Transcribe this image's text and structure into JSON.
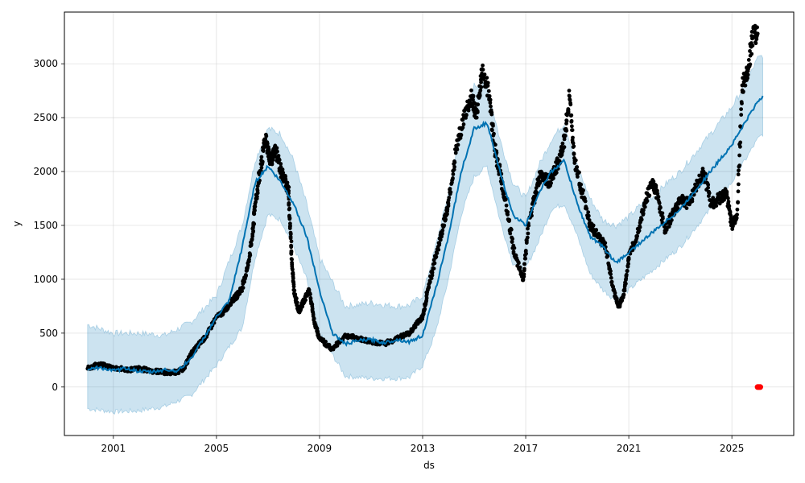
{
  "chart_data": {
    "type": "line",
    "title": "",
    "xlabel": "ds",
    "ylabel": "y",
    "x_tick_labels": [
      "2001",
      "2005",
      "2009",
      "2013",
      "2017",
      "2021",
      "2025"
    ],
    "x_tick_values": [
      2001,
      2005,
      2009,
      2013,
      2017,
      2021,
      2025
    ],
    "y_tick_labels": [
      "0",
      "500",
      "1000",
      "1500",
      "2000",
      "2500",
      "3000"
    ],
    "y_tick_values": [
      0,
      500,
      1000,
      1500,
      2000,
      2500,
      3000
    ],
    "xlim": [
      1999.1,
      2027.4
    ],
    "ylim": [
      -450,
      3480
    ],
    "grid": true,
    "colors": {
      "forecast_line": "#0072b2",
      "interval_fill": "#0072b2",
      "observed": "#000000",
      "highlight": "#ff0000"
    },
    "series": [
      {
        "type": "scatter",
        "x": [
          2000.0,
          2000.4,
          2001.0,
          2001.5,
          2002.0,
          2002.5,
          2002.9,
          2003.3,
          2003.7,
          2004.0,
          2004.3,
          2004.6,
          2005.0,
          2005.3,
          2005.6,
          2005.8,
          2006.0,
          2006.2,
          2006.4,
          2006.5,
          2006.7,
          2006.9,
          2007.1,
          2007.3,
          2007.5,
          2007.7,
          2007.8,
          2007.9,
          2008.0,
          2008.2,
          2008.4,
          2008.6,
          2008.8,
          2009.0,
          2009.5,
          2010.0,
          2010.5,
          2011.0,
          2011.5,
          2012.0,
          2012.5,
          2012.8,
          2013.0,
          2013.2,
          2013.5,
          2013.8,
          2014.0,
          2014.3,
          2014.6,
          2014.9,
          2015.1,
          2015.3,
          2015.6,
          2015.8,
          2016.0,
          2016.3,
          2016.6,
          2016.9,
          2017.1,
          2017.4,
          2017.6,
          2017.9,
          2018.1,
          2018.3,
          2018.5,
          2018.7,
          2018.9,
          2019.2,
          2019.5,
          2019.8,
          2020.1,
          2020.4,
          2020.6,
          2020.8,
          2021.0,
          2021.3,
          2021.6,
          2021.9,
          2022.1,
          2022.4,
          2022.7,
          2023.0,
          2023.3,
          2023.6,
          2023.9,
          2024.2,
          2024.5,
          2024.8,
          2025.0,
          2025.2,
          2025.4,
          2025.6,
          2025.8,
          2026.0
        ],
        "y": [
          170,
          210,
          180,
          160,
          170,
          150,
          140,
          130,
          160,
          300,
          390,
          470,
          650,
          700,
          800,
          850,
          920,
          1100,
          1400,
          1700,
          2000,
          2300,
          2100,
          2200,
          2000,
          1900,
          1800,
          1300,
          900,
          700,
          800,
          900,
          600,
          450,
          350,
          480,
          450,
          420,
          400,
          450,
          500,
          600,
          650,
          900,
          1200,
          1500,
          1700,
          2200,
          2500,
          2700,
          2500,
          2950,
          2700,
          2200,
          2000,
          1600,
          1200,
          1000,
          1500,
          1800,
          2000,
          1900,
          2000,
          2100,
          2300,
          2700,
          2100,
          1800,
          1500,
          1400,
          1300,
          900,
          750,
          850,
          1200,
          1400,
          1700,
          1900,
          1800,
          1450,
          1600,
          1750,
          1700,
          1850,
          2000,
          1700,
          1750,
          1800,
          1500,
          1600,
          2800,
          2900,
          3250,
          3280
        ]
      },
      {
        "name": "",
        "type": "line",
        "x": [
          2000.0,
          2000.5,
          2001.0,
          2001.5,
          2002.0,
          2002.5,
          2003.0,
          2003.5,
          2004.0,
          2004.5,
          2005.0,
          2005.5,
          2006.0,
          2006.5,
          2007.0,
          2007.5,
          2008.0,
          2008.5,
          2009.0,
          2009.5,
          2010.0,
          2010.5,
          2011.0,
          2011.5,
          2012.0,
          2012.5,
          2013.0,
          2013.5,
          2014.0,
          2014.5,
          2015.0,
          2015.5,
          2016.0,
          2016.5,
          2017.0,
          2017.5,
          2018.0,
          2018.5,
          2019.0,
          2019.5,
          2020.0,
          2020.5,
          2021.0,
          2021.5,
          2022.0,
          2022.5,
          2023.0,
          2023.5,
          2024.0,
          2024.5,
          2025.0,
          2025.5,
          2026.0,
          2026.2
        ],
        "y": [
          170,
          180,
          150,
          175,
          145,
          140,
          160,
          150,
          260,
          450,
          650,
          800,
          1300,
          1900,
          2050,
          1900,
          1700,
          1400,
          900,
          500,
          400,
          430,
          440,
          410,
          440,
          420,
          480,
          900,
          1400,
          2000,
          2400,
          2450,
          2000,
          1600,
          1500,
          1800,
          2000,
          2100,
          1700,
          1400,
          1300,
          1150,
          1250,
          1350,
          1450,
          1550,
          1650,
          1800,
          1950,
          2100,
          2250,
          2450,
          2650,
          2700
        ]
      }
    ],
    "uncertainty_band": {
      "x": [
        2000.0,
        2001.0,
        2002.0,
        2003.0,
        2004.0,
        2005.0,
        2006.0,
        2006.5,
        2007.0,
        2007.5,
        2008.0,
        2008.5,
        2009.0,
        2010.0,
        2011.0,
        2012.0,
        2012.5,
        2013.0,
        2013.5,
        2014.0,
        2014.5,
        2015.0,
        2015.5,
        2016.0,
        2016.5,
        2017.0,
        2017.5,
        2018.0,
        2018.5,
        2019.0,
        2019.5,
        2020.0,
        2020.5,
        2021.0,
        2021.5,
        2022.0,
        2022.5,
        2023.0,
        2023.5,
        2024.0,
        2024.5,
        2025.0,
        2025.5,
        2026.0,
        2026.2
      ],
      "upper": [
        580,
        500,
        500,
        480,
        600,
        850,
        1500,
        2100,
        2400,
        2350,
        2100,
        1700,
        1200,
        750,
        780,
        750,
        760,
        850,
        1300,
        1800,
        2400,
        2800,
        2800,
        2300,
        1900,
        1750,
        2050,
        2300,
        2450,
        2050,
        1750,
        1550,
        1500,
        1580,
        1700,
        1780,
        1900,
        2000,
        2150,
        2300,
        2450,
        2600,
        2800,
        3050,
        3080
      ],
      "lower": [
        -200,
        -230,
        -220,
        -180,
        -80,
        200,
        550,
        1200,
        1600,
        1550,
        1300,
        1000,
        500,
        100,
        80,
        80,
        90,
        200,
        500,
        1000,
        1600,
        1950,
        2050,
        1550,
        1150,
        1100,
        1350,
        1650,
        1700,
        1400,
        1050,
        900,
        800,
        900,
        1000,
        1100,
        1200,
        1300,
        1450,
        1600,
        1750,
        1900,
        2100,
        2300,
        2350
      ]
    },
    "highlight_points": {
      "x": [
        2026.0,
        2026.05,
        2026.1
      ],
      "y": [
        0,
        0,
        0
      ]
    }
  }
}
